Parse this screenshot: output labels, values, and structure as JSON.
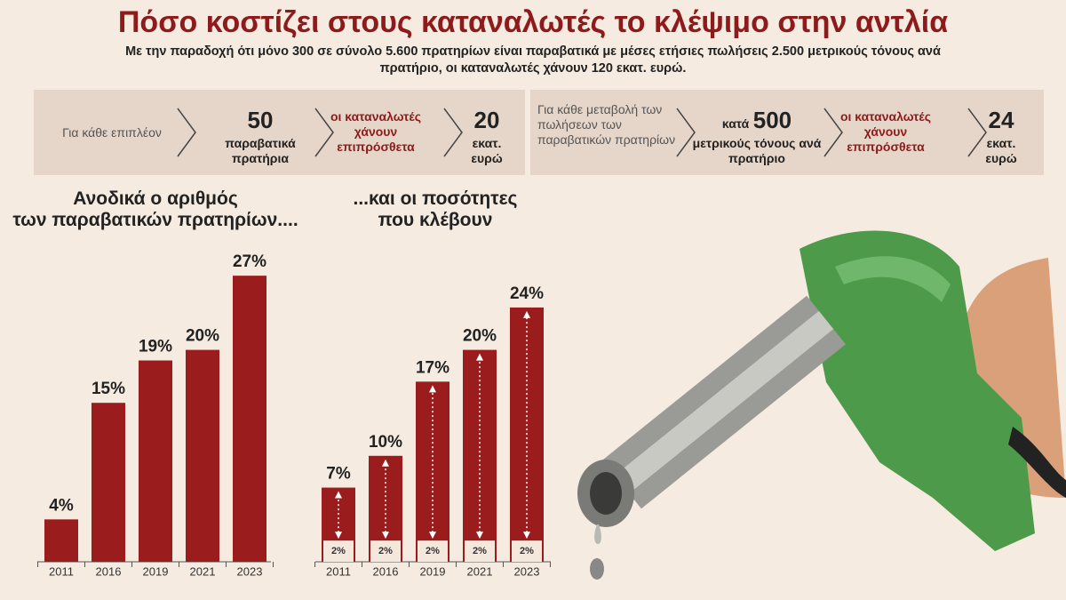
{
  "header": {
    "title": "Πόσο κοστίζει στους καταναλωτές το κλέψιμο στην αντλία",
    "subtitle": "Με την παραδοχή ότι μόνο 300 σε σύνολο 5.600 πρατηρίων είναι παραβατικά με μέσες ετήσιες πωλήσεις 2.500 μετρικούς τόνους ανά πρατήριο, οι καταναλωτές χάνουν 120 εκατ. ευρώ."
  },
  "info_boxes": [
    {
      "intro": "Για κάθε επιπλέον",
      "prefix": "",
      "number": "50",
      "unit": "παραβατικά πρατήρια",
      "effect": "οι καταναλωτές χάνουν επιπρόσθετα",
      "cost": "20",
      "cost_unit": "εκατ. ευρώ"
    },
    {
      "intro": "Για κάθε μεταβολή των πωλήσεων των παραβατικών πρατηρίων",
      "prefix": "κατά",
      "number": "500",
      "unit": "μετρικούς τόνους ανά πρατήριο",
      "effect": "οι καταναλωτές χάνουν επιπρόσθετα",
      "cost": "24",
      "cost_unit": "εκατ. ευρώ"
    }
  ],
  "chart_data": [
    {
      "type": "bar",
      "title": "Ανοδικά ο αριθμός\nτων παραβατικών πρατηρίων....",
      "categories": [
        "2011",
        "2016",
        "2019",
        "2021",
        "2023"
      ],
      "values": [
        4,
        15,
        19,
        20,
        27
      ],
      "value_labels": [
        "4%",
        "15%",
        "19%",
        "20%",
        "27%"
      ],
      "color": "#9b1c1c"
    },
    {
      "type": "bar",
      "title": "...και οι ποσότητες\nπου κλέβουν",
      "categories": [
        "2011",
        "2016",
        "2019",
        "2021",
        "2023"
      ],
      "values": [
        7,
        10,
        17,
        20,
        24
      ],
      "value_labels": [
        "7%",
        "10%",
        "17%",
        "20%",
        "24%"
      ],
      "color": "#9b1c1c",
      "base_values": [
        2,
        2,
        2,
        2,
        2
      ],
      "base_value_labels": [
        "2%",
        "2%",
        "2%",
        "2%",
        "2%"
      ],
      "base_color": "#f4e7dc"
    }
  ]
}
